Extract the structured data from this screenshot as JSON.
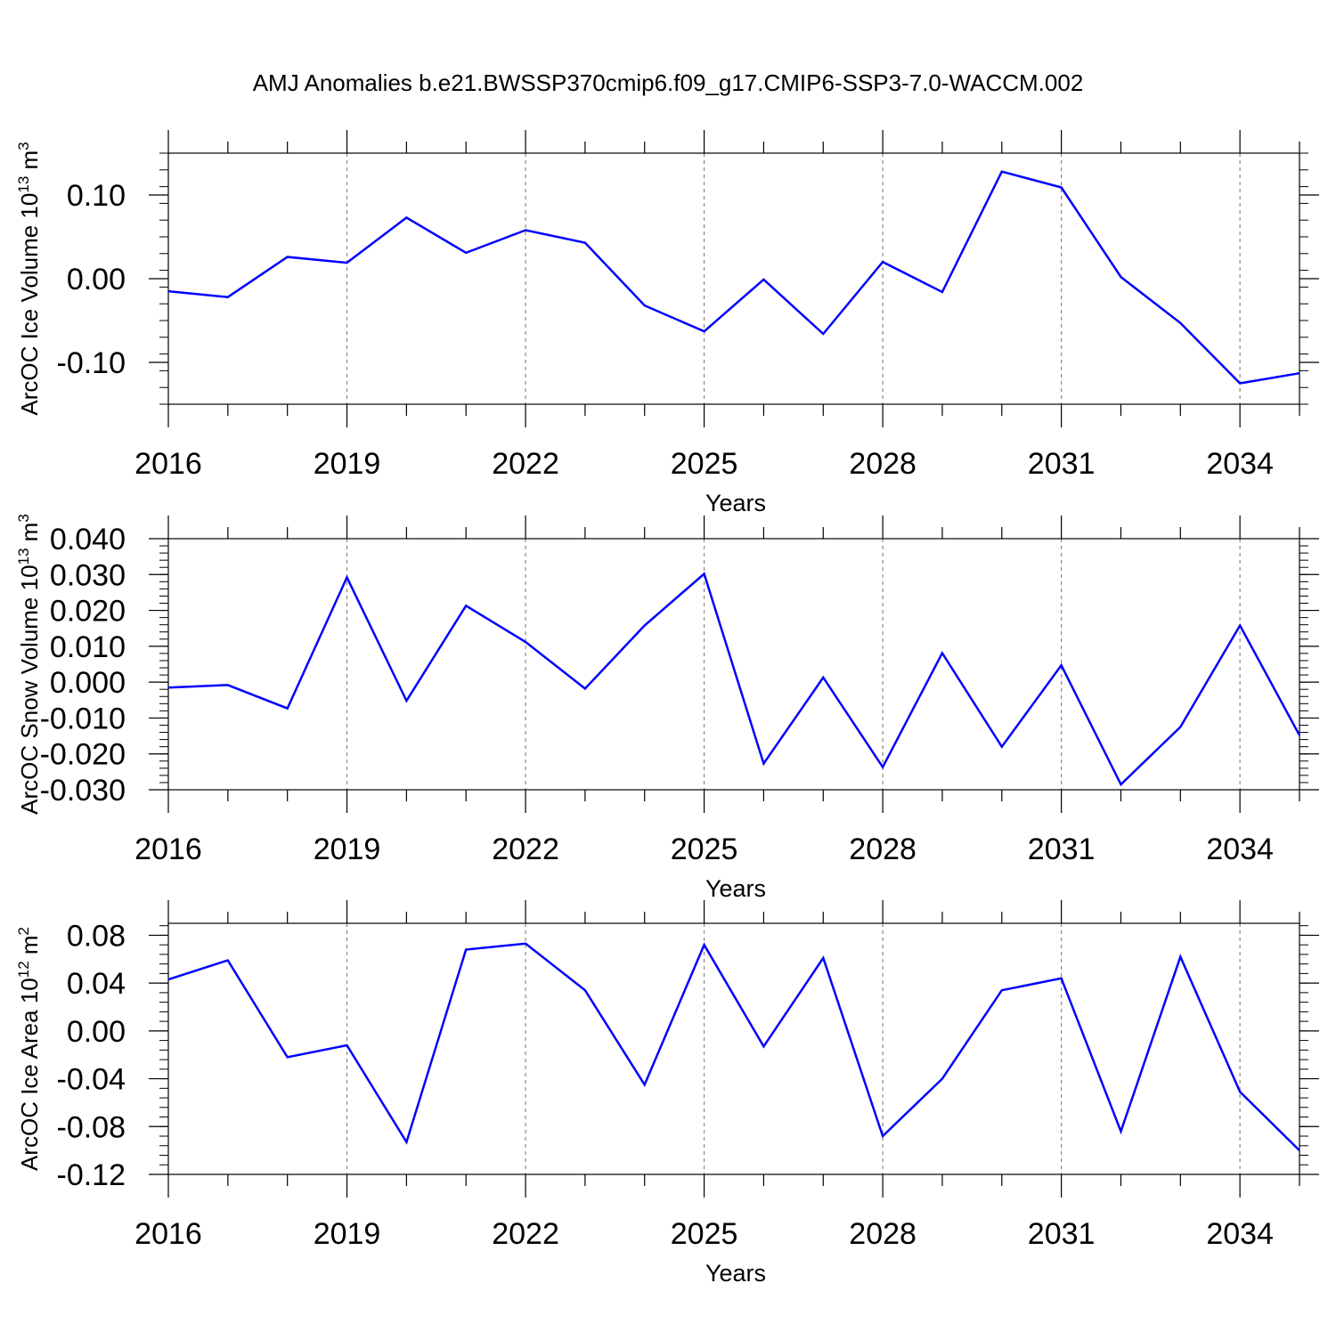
{
  "figure": {
    "title": "AMJ Anomalies b.e21.BWSSP370cmip6.f09_g17.CMIP6-SSP3-7.0-WACCM.002",
    "line_color": "#0000ff",
    "grid_color": "#888888"
  },
  "chart_data": [
    {
      "type": "line",
      "title": "",
      "xlabel": "Years",
      "ylabel": "ArcOC Ice Volume 10",
      "ylabel_exp": "13",
      "ylabel_unit": "m",
      "ylabel_unit_exp": "3",
      "xlim": [
        2016,
        2035
      ],
      "ylim": [
        -0.15,
        0.15
      ],
      "xticks": [
        2016,
        2019,
        2022,
        2025,
        2028,
        2031,
        2034
      ],
      "yticks": [
        -0.1,
        0.0,
        0.1
      ],
      "ytick_labels": [
        "-0.10",
        "0.00",
        "0.10"
      ],
      "yminor_step": 0.02,
      "grid": "x-dashed",
      "x": [
        2016,
        2017,
        2018,
        2019,
        2020,
        2021,
        2022,
        2023,
        2024,
        2025,
        2026,
        2027,
        2028,
        2029,
        2030,
        2031,
        2032,
        2033,
        2034,
        2035
      ],
      "series": [
        {
          "values": [
            -0.015,
            -0.022,
            0.026,
            0.019,
            0.073,
            0.031,
            0.058,
            0.043,
            -0.032,
            -0.063,
            -0.001,
            -0.066,
            0.02,
            -0.016,
            0.128,
            0.109,
            0.002,
            -0.053,
            -0.125,
            -0.113
          ]
        }
      ]
    },
    {
      "type": "line",
      "title": "",
      "xlabel": "Years",
      "ylabel": "ArcOC Snow Volume 10",
      "ylabel_exp": "13",
      "ylabel_unit": "m",
      "ylabel_unit_exp": "3",
      "xlim": [
        2016,
        2035
      ],
      "ylim": [
        -0.03,
        0.04
      ],
      "xticks": [
        2016,
        2019,
        2022,
        2025,
        2028,
        2031,
        2034
      ],
      "yticks": [
        -0.03,
        -0.02,
        -0.01,
        0.0,
        0.01,
        0.02,
        0.03,
        0.04
      ],
      "ytick_labels": [
        "-0.030",
        "-0.020",
        "-0.010",
        "0.000",
        "0.010",
        "0.020",
        "0.030",
        "0.040"
      ],
      "yminor_step": 0.002,
      "grid": "x-dashed",
      "x": [
        2016,
        2017,
        2018,
        2019,
        2020,
        2021,
        2022,
        2023,
        2024,
        2025,
        2026,
        2027,
        2028,
        2029,
        2030,
        2031,
        2032,
        2033,
        2034,
        2035
      ],
      "series": [
        {
          "values": [
            -0.0015,
            -0.0008,
            -0.0073,
            0.0292,
            -0.0052,
            0.0213,
            0.0112,
            -0.0018,
            0.0158,
            0.0302,
            -0.0227,
            0.0013,
            -0.0237,
            0.0081,
            -0.018,
            0.0047,
            -0.0285,
            -0.0125,
            0.0158,
            -0.0148
          ]
        }
      ]
    },
    {
      "type": "line",
      "title": "",
      "xlabel": "Years",
      "ylabel": "ArcOC Ice Area 10",
      "ylabel_exp": "12",
      "ylabel_unit": "m",
      "ylabel_unit_exp": "2",
      "xlim": [
        2016,
        2035
      ],
      "ylim": [
        -0.12,
        0.09
      ],
      "xticks": [
        2016,
        2019,
        2022,
        2025,
        2028,
        2031,
        2034
      ],
      "yticks": [
        -0.12,
        -0.08,
        -0.04,
        0.0,
        0.04,
        0.08
      ],
      "ytick_labels": [
        "-0.12",
        "-0.08",
        "-0.04",
        "0.00",
        "0.04",
        "0.08"
      ],
      "yminor_step": 0.008,
      "grid": "x-dashed",
      "x": [
        2016,
        2017,
        2018,
        2019,
        2020,
        2021,
        2022,
        2023,
        2024,
        2025,
        2026,
        2027,
        2028,
        2029,
        2030,
        2031,
        2032,
        2033,
        2034,
        2035
      ],
      "series": [
        {
          "values": [
            0.043,
            0.059,
            -0.022,
            -0.012,
            -0.093,
            0.068,
            0.073,
            0.034,
            -0.045,
            0.072,
            -0.013,
            0.061,
            -0.088,
            -0.04,
            0.034,
            0.044,
            -0.084,
            0.062,
            -0.051,
            -0.1
          ]
        }
      ]
    }
  ]
}
